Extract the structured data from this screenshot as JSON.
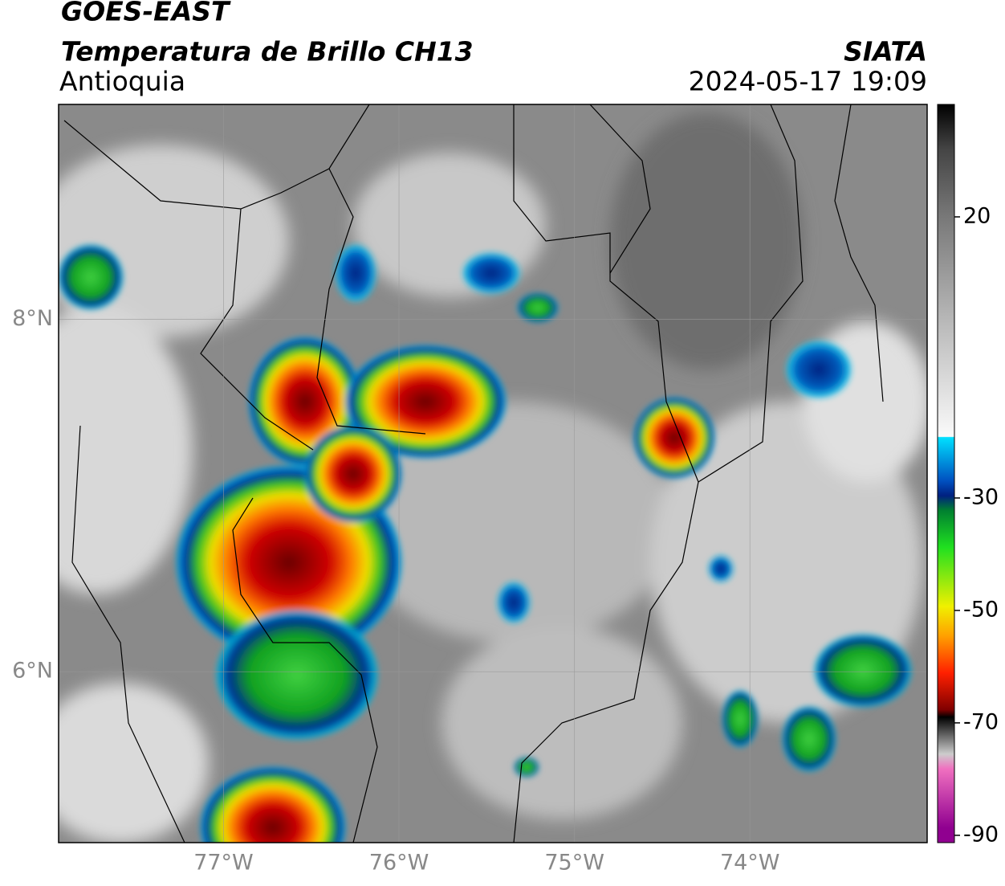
{
  "header": {
    "satellite": "GOES-EAST",
    "product": "Temperatura de Brillo CH13",
    "region": "Antioquia",
    "source": "SIATA",
    "timestamp": "2024-05-17 19:09"
  },
  "map": {
    "xlim": [
      -77.94,
      -72.99
    ],
    "ylim": [
      5.03,
      9.22
    ],
    "xticks": [
      {
        "value": -77,
        "label": "77°W"
      },
      {
        "value": -76,
        "label": "76°W"
      },
      {
        "value": -75,
        "label": "75°W"
      },
      {
        "value": -74,
        "label": "74°W"
      }
    ],
    "yticks": [
      {
        "value": 6,
        "label": "6°N"
      },
      {
        "value": 8,
        "label": "8°N"
      }
    ],
    "grid": true
  },
  "colorbar": {
    "lim": [
      -91.3,
      40
    ],
    "ticks": [
      20,
      -30,
      -50,
      -70,
      -90
    ]
  }
}
